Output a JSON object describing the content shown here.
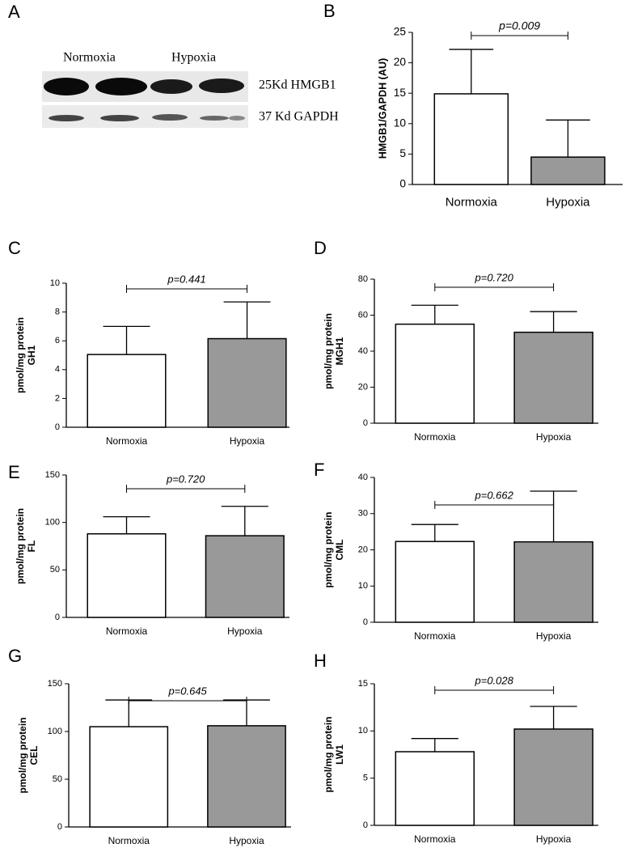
{
  "blot": {
    "panel": "A",
    "groups": [
      "Normoxia",
      "Hypoxia"
    ],
    "bands": [
      "25Kd HMGB1",
      "37 Kd GAPDH"
    ]
  },
  "chart_data": [
    {
      "type": "bar",
      "panel": "B",
      "ylabel": [
        "HMGB1/GAPDH (AU)"
      ],
      "categories": [
        "Normoxia",
        "Hypoxia"
      ],
      "values": [
        14.9,
        4.5
      ],
      "errors": [
        7.3,
        6.1
      ],
      "colors": [
        "#ffffff",
        "#999999"
      ],
      "ylim": [
        0,
        25
      ],
      "yticks": [
        0,
        5,
        10,
        15,
        20,
        25
      ],
      "annotation": "p=0.009"
    },
    {
      "type": "bar",
      "panel": "C",
      "ylabel": [
        "GH1",
        "pmol/mg protein"
      ],
      "categories": [
        "Normoxia",
        "Hypoxia"
      ],
      "values": [
        5.05,
        6.15
      ],
      "errors": [
        1.95,
        2.55
      ],
      "colors": [
        "#ffffff",
        "#999999"
      ],
      "ylim": [
        0,
        10
      ],
      "yticks": [
        0,
        2,
        4,
        6,
        8,
        10
      ],
      "annotation": "p=0.441"
    },
    {
      "type": "bar",
      "panel": "D",
      "ylabel": [
        "MGH1",
        "pmol/mg protein"
      ],
      "categories": [
        "Normoxia",
        "Hypoxia"
      ],
      "values": [
        55,
        50.5
      ],
      "errors": [
        10.5,
        11.5
      ],
      "colors": [
        "#ffffff",
        "#999999"
      ],
      "ylim": [
        0,
        80
      ],
      "yticks": [
        0,
        20,
        40,
        60,
        80
      ],
      "annotation": "p=0.720"
    },
    {
      "type": "bar",
      "panel": "E",
      "ylabel": [
        "FL",
        "pmol/mg protein"
      ],
      "categories": [
        "Normoxia",
        "Hypoxia"
      ],
      "values": [
        88,
        86
      ],
      "errors": [
        18,
        31
      ],
      "colors": [
        "#ffffff",
        "#999999"
      ],
      "ylim": [
        0,
        150
      ],
      "yticks": [
        0,
        50,
        100,
        150
      ],
      "annotation": "p=0.720"
    },
    {
      "type": "bar",
      "panel": "F",
      "ylabel": [
        "CML",
        "pmol/mg protein"
      ],
      "categories": [
        "Normoxia",
        "Hypoxia"
      ],
      "values": [
        22.3,
        22.2
      ],
      "errors": [
        4.7,
        14
      ],
      "colors": [
        "#ffffff",
        "#999999"
      ],
      "ylim": [
        0,
        40
      ],
      "yticks": [
        0,
        10,
        20,
        30,
        40
      ],
      "annotation": "p=0.662"
    },
    {
      "type": "bar",
      "panel": "G",
      "ylabel": [
        "CEL",
        "pmol/mg protein"
      ],
      "categories": [
        "Normoxia",
        "Hypoxia"
      ],
      "values": [
        105,
        106
      ],
      "errors": [
        28,
        27
      ],
      "colors": [
        "#ffffff",
        "#999999"
      ],
      "ylim": [
        0,
        150
      ],
      "yticks": [
        0,
        50,
        100,
        150
      ],
      "annotation": "p=0.645"
    },
    {
      "type": "bar",
      "panel": "H",
      "ylabel": [
        "LW1",
        "pmol/mg protein"
      ],
      "categories": [
        "Normoxia",
        "Hypoxia"
      ],
      "values": [
        7.8,
        10.2
      ],
      "errors": [
        1.4,
        2.4
      ],
      "colors": [
        "#ffffff",
        "#999999"
      ],
      "ylim": [
        0,
        15
      ],
      "yticks": [
        0,
        5,
        10,
        15
      ],
      "annotation": "p=0.028"
    }
  ]
}
